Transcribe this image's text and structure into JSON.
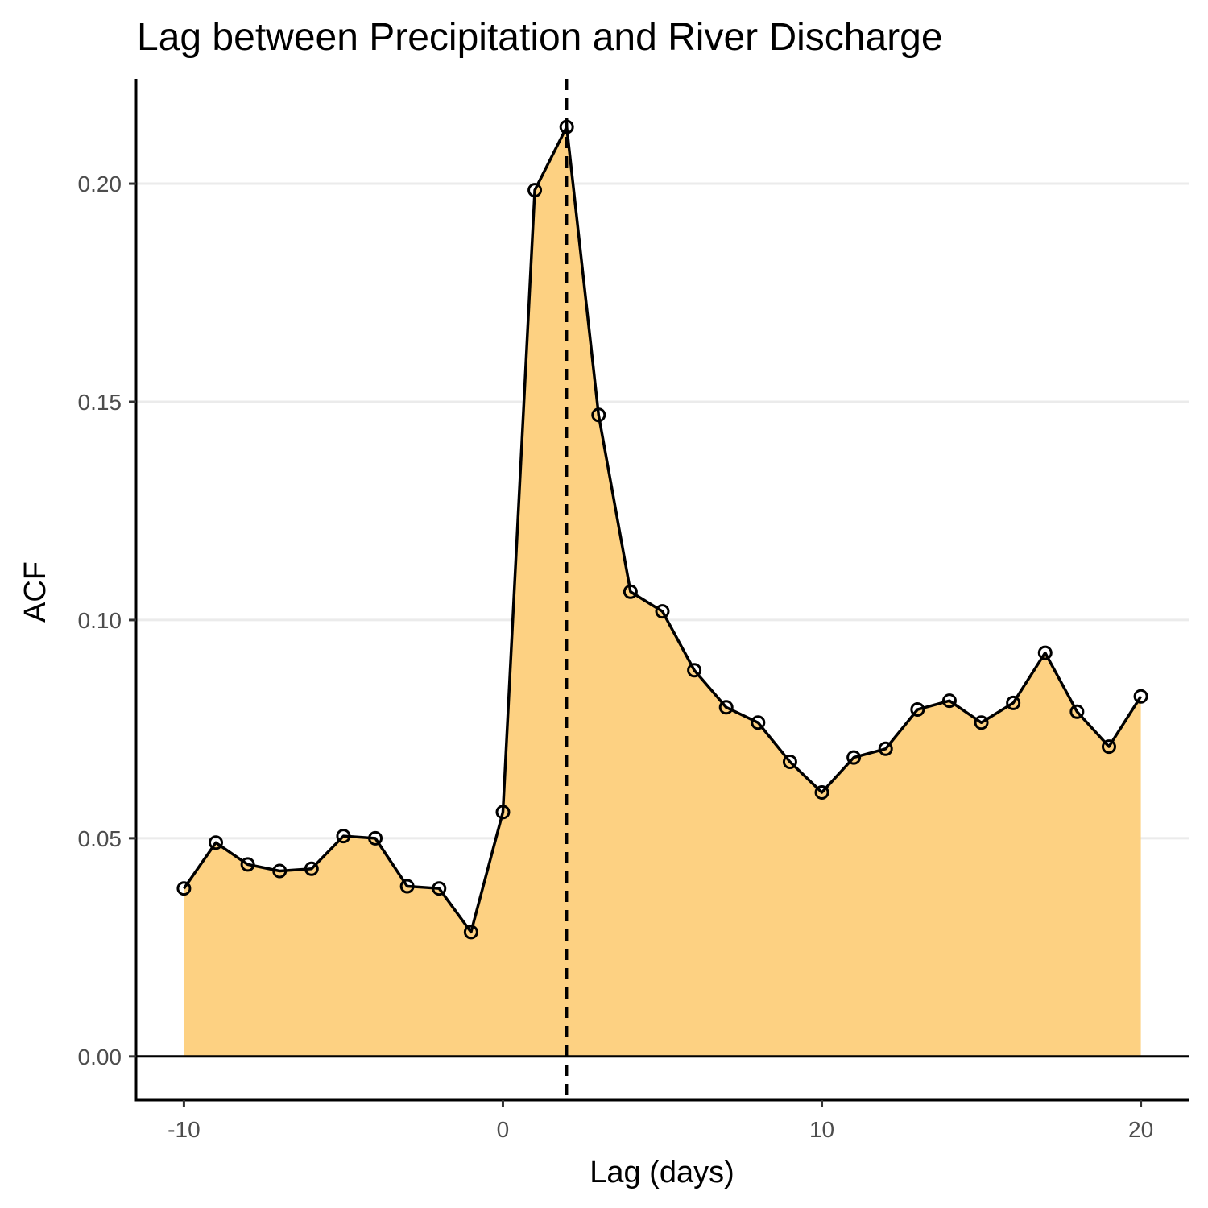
{
  "chart_data": {
    "type": "area",
    "title": "Lag between Precipitation and River Discharge",
    "xlabel": "Lag (days)",
    "ylabel": "ACF",
    "xlim": [
      -11.5,
      21.5
    ],
    "ylim": [
      -0.01,
      0.224
    ],
    "x_ticks": [
      -10,
      0,
      10,
      20
    ],
    "x_tick_labels": [
      "-10",
      "0",
      "10",
      "20"
    ],
    "y_ticks": [
      0.0,
      0.05,
      0.1,
      0.15,
      0.2
    ],
    "y_tick_labels": [
      "0.00",
      "0.05",
      "0.10",
      "0.15",
      "0.20"
    ],
    "grid": "horizontal major",
    "fill_color": "#fdd182",
    "line_color": "#000000",
    "reference_lines": {
      "horizontal_y": 0,
      "vertical_dashed_x": 2
    },
    "x": [
      -10,
      -9,
      -8,
      -7,
      -6,
      -5,
      -4,
      -3,
      -2,
      -1,
      0,
      1,
      2,
      3,
      4,
      5,
      6,
      7,
      8,
      9,
      10,
      11,
      12,
      13,
      14,
      15,
      16,
      17,
      18,
      19,
      20
    ],
    "values": [
      0.0385,
      0.049,
      0.044,
      0.0425,
      0.043,
      0.0505,
      0.05,
      0.039,
      0.0385,
      0.0285,
      0.056,
      0.1985,
      0.213,
      0.147,
      0.1065,
      0.102,
      0.0885,
      0.08,
      0.0765,
      0.0675,
      0.0605,
      0.0685,
      0.0705,
      0.0795,
      0.0815,
      0.0765,
      0.081,
      0.0925,
      0.079,
      0.071,
      0.0825
    ]
  }
}
